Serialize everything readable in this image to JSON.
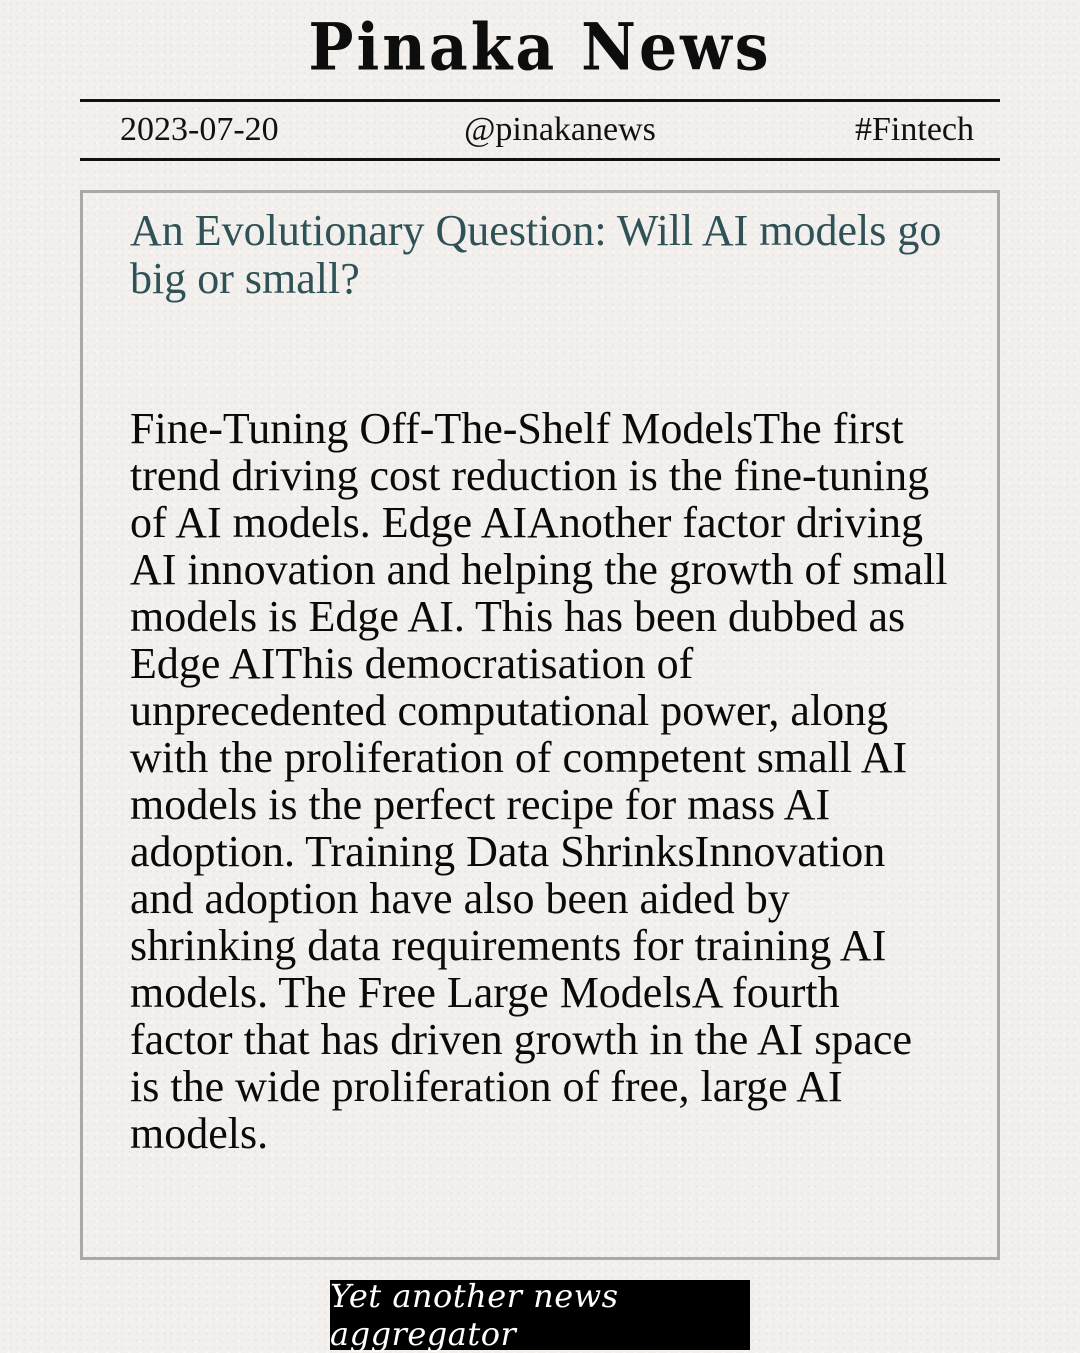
{
  "masthead": {
    "title": "Pinaka News"
  },
  "meta": {
    "date": "2023-07-20",
    "handle": "@pinakanews",
    "tag": "#Fintech"
  },
  "article": {
    "headline": "An Evolutionary Question: Will AI models go big or small?",
    "body": "Fine-Tuning Off-The-Shelf ModelsThe first trend driving cost reduction is the fine-tuning of AI models. Edge AIAnother factor driving AI innovation and helping the growth of small models is Edge AI. This has been dubbed as Edge AIThis democratisation of unprecedented computational power, along with the proliferation of competent small AI models is the perfect recipe for mass AI adoption. Training Data ShrinksInnovation and adoption have also been aided by shrinking data requirements for training AI models. The Free Large ModelsA fourth factor that has driven growth in the AI space is the wide proliferation of free, large AI models."
  },
  "footer": {
    "tagline": "Yet another news aggregator"
  },
  "colors": {
    "headline": "#2f5257",
    "border": "#a9a9a9",
    "footer_bg": "#000000"
  }
}
